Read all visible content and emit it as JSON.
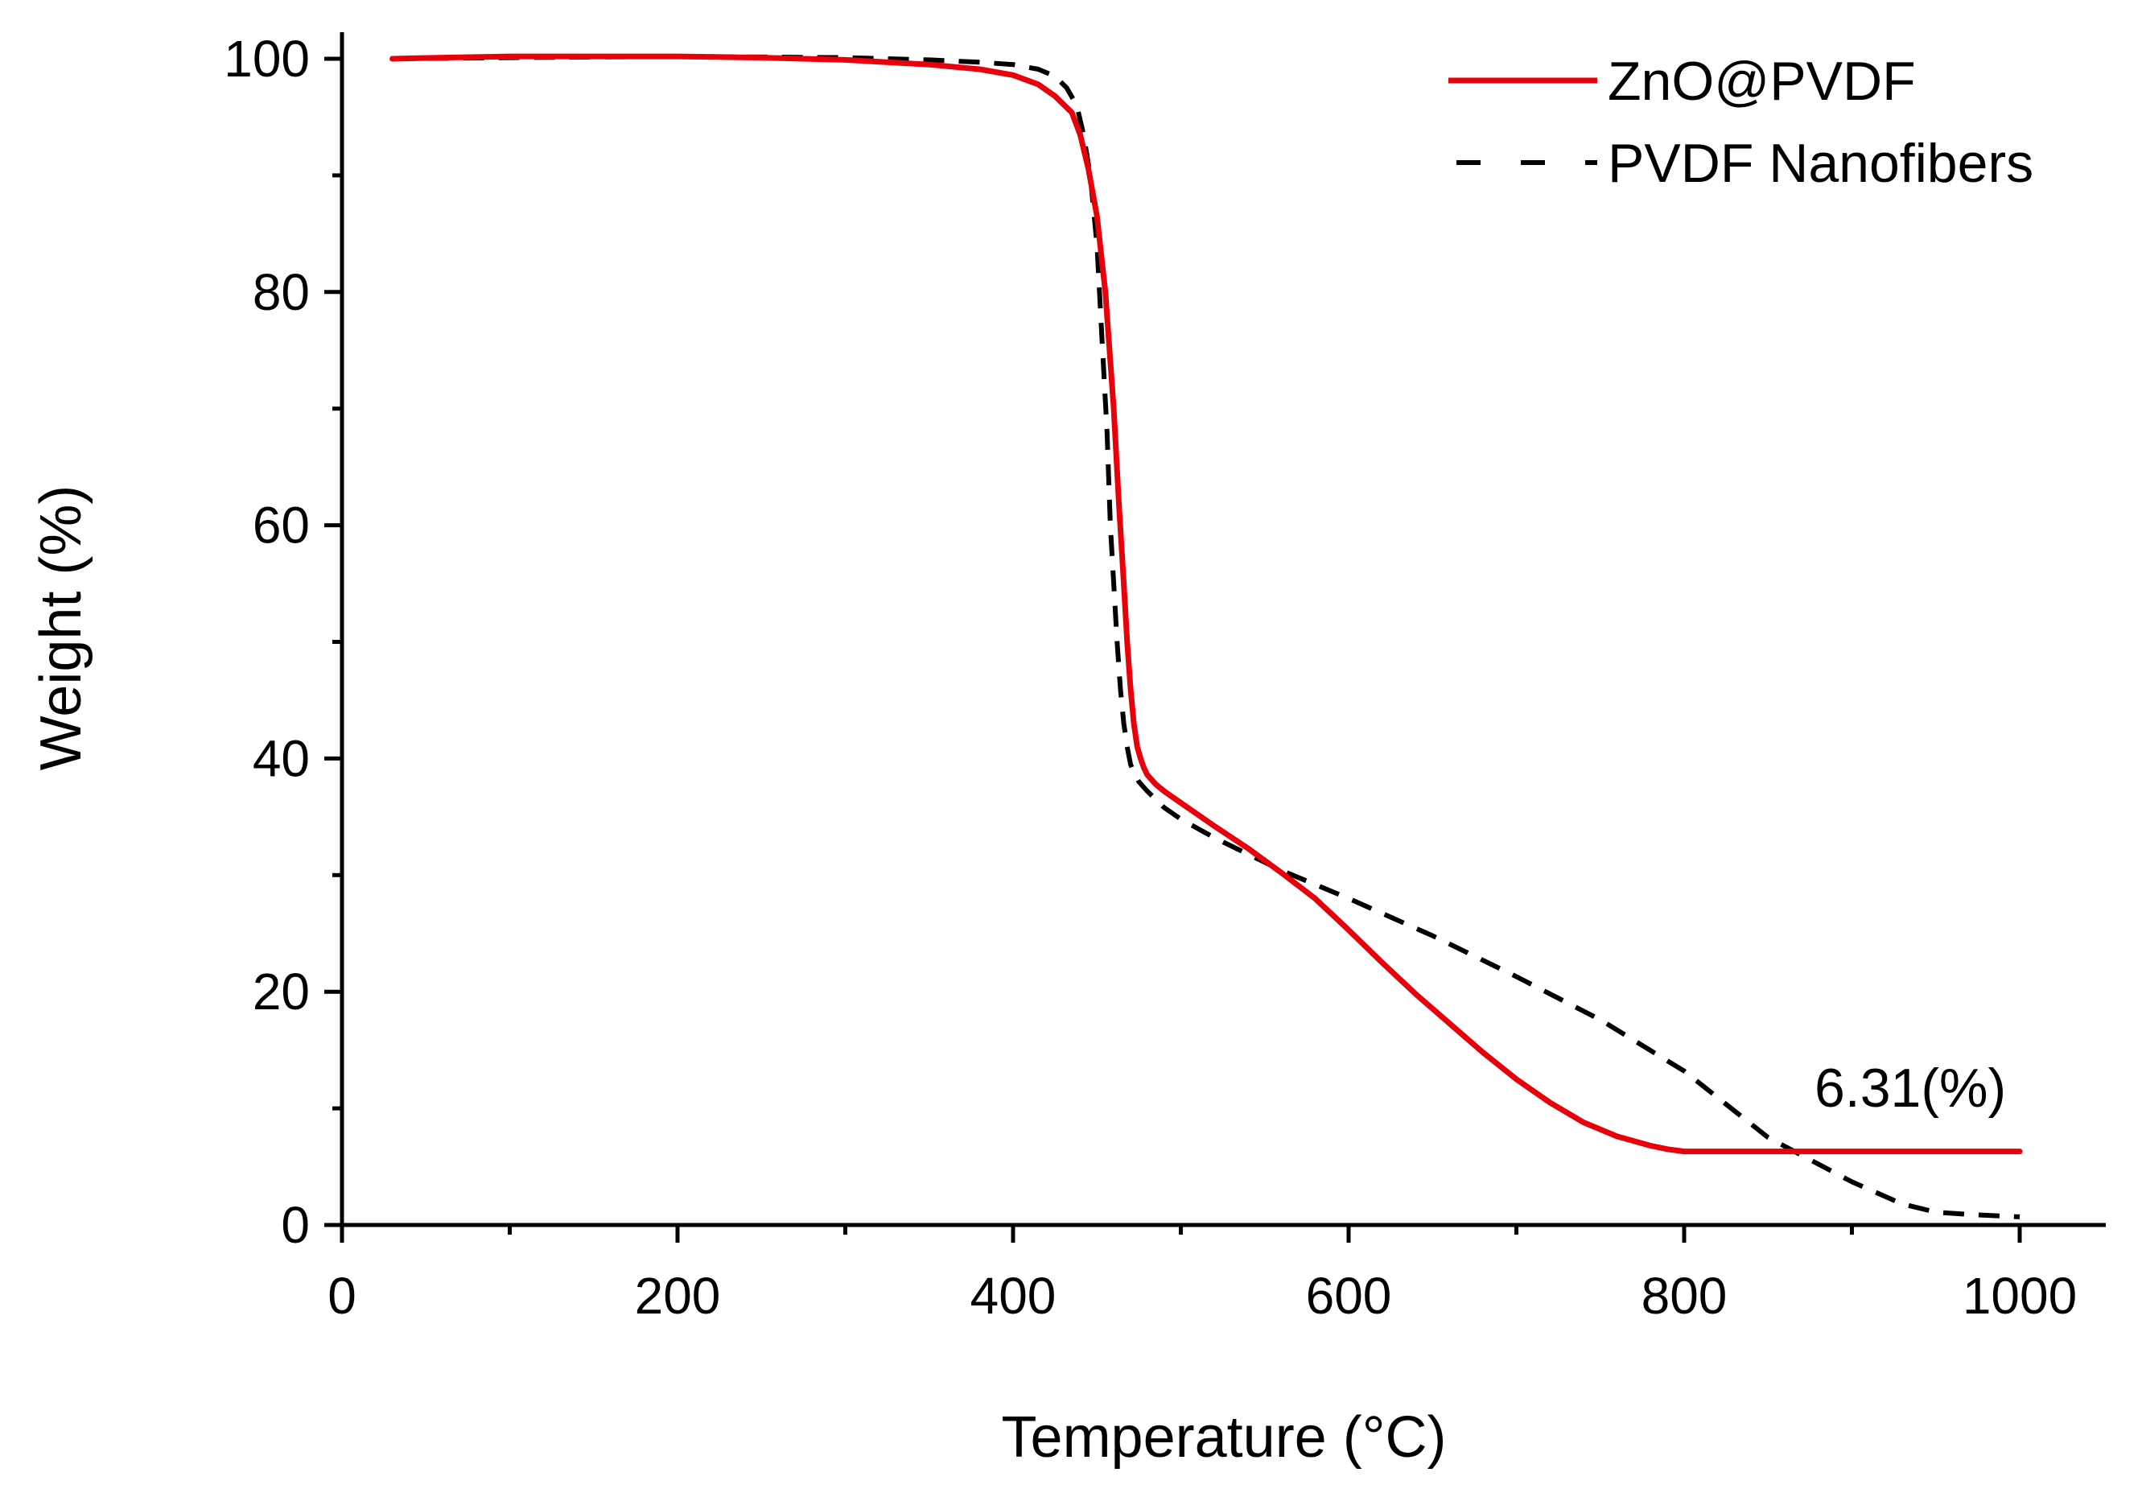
{
  "chart_data": {
    "type": "line",
    "title": "",
    "xlabel": "Temperature (°C)",
    "ylabel": "Weight (%)",
    "xlim": [
      0,
      1050
    ],
    "ylim": [
      0,
      102
    ],
    "xticks": [
      0,
      200,
      400,
      600,
      800,
      1000
    ],
    "xtick_labels": [
      "0",
      "200",
      "400",
      "600",
      "800",
      "1000"
    ],
    "yticks": [
      0,
      20,
      40,
      60,
      80,
      100
    ],
    "ytick_labels": [
      "0",
      "20",
      "40",
      "60",
      "80",
      "100"
    ],
    "minor_xticks": [
      100,
      300,
      500,
      700,
      900
    ],
    "minor_yticks": [
      10,
      30,
      50,
      70,
      90
    ],
    "legend_position": "top-right",
    "series": [
      {
        "name": "ZnO@PVDF",
        "color": "#e8000b",
        "style": "solid",
        "x": [
          30,
          60,
          100,
          150,
          200,
          250,
          300,
          350,
          380,
          400,
          415,
          425,
          435,
          440,
          445,
          450,
          455,
          460,
          463,
          466,
          468,
          470,
          472,
          474,
          476,
          478,
          480,
          485,
          490,
          500,
          520,
          540,
          560,
          580,
          600,
          620,
          640,
          660,
          680,
          700,
          720,
          740,
          760,
          780,
          790,
          800,
          850,
          900,
          950,
          1000
        ],
        "y": [
          100,
          100.1,
          100.2,
          100.2,
          100.2,
          100.1,
          99.9,
          99.5,
          99.1,
          98.6,
          97.8,
          96.8,
          95.4,
          93.5,
          90.5,
          86.5,
          80,
          70,
          62,
          55,
          50,
          46,
          43,
          41,
          40,
          39.2,
          38.6,
          37.8,
          37.2,
          36.2,
          34.2,
          32.3,
          30.2,
          28,
          25.3,
          22.5,
          19.8,
          17.3,
          14.8,
          12.5,
          10.5,
          8.8,
          7.6,
          6.8,
          6.5,
          6.31,
          6.31,
          6.31,
          6.31,
          6.31
        ]
      },
      {
        "name": "PVDF Nanofibers",
        "color": "#000000",
        "style": "dashed",
        "x": [
          30,
          100,
          200,
          300,
          350,
          380,
          400,
          415,
          425,
          432,
          438,
          442,
          446,
          450,
          453,
          456,
          458,
          460,
          462,
          464,
          466,
          468,
          470,
          472,
          475,
          480,
          490,
          500,
          520,
          540,
          560,
          580,
          600,
          650,
          700,
          750,
          800,
          850,
          900,
          930,
          950,
          970,
          1000
        ],
        "y": [
          100,
          100.1,
          100.2,
          100.1,
          99.9,
          99.7,
          99.5,
          99.1,
          98.5,
          97.5,
          96,
          93.5,
          90,
          84,
          76,
          68,
          60,
          55,
          50,
          46,
          43,
          41,
          39.5,
          38.8,
          38,
          37.2,
          35.8,
          34.8,
          33.2,
          31.8,
          30.4,
          29.2,
          28,
          24.8,
          21.3,
          17.6,
          13.2,
          7.5,
          3.7,
          1.8,
          1.1,
          0.9,
          0.7
        ]
      }
    ],
    "annotations": [
      {
        "text": "6.31(%)",
        "x": 930,
        "y": 11.8
      }
    ]
  }
}
